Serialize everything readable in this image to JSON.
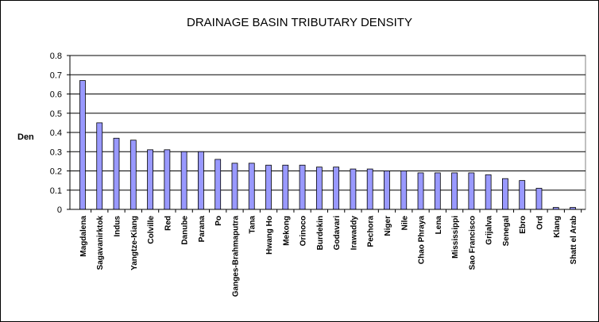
{
  "chart_data": {
    "type": "bar",
    "title": "DRAINAGE BASIN TRIBUTARY DENSITY",
    "ylabel": "Den",
    "xlabel": "",
    "ylim": [
      0,
      0.8
    ],
    "yticks": [
      "0",
      "0.1",
      "0.2",
      "0.3",
      "0.4",
      "0.5",
      "0.6",
      "0.7",
      "0.8"
    ],
    "grid": true,
    "bar_color": "#9999FF",
    "categories": [
      "Magdalena",
      "Sagavanirktok",
      "Indus",
      "Yangtze-Kiang",
      "Colville",
      "Red",
      "Danube",
      "Parana",
      "Po",
      "Ganges-Brahmaputra",
      "Tana",
      "Hwang Ho",
      "Mekong",
      "Orinoco",
      "Burdekin",
      "Godavari",
      "Irawaddy",
      "Pechora",
      "Niger",
      "Nile",
      "Chao Phraya",
      "Lena",
      "Mississippi",
      "Sao Francisco",
      "Grijalva",
      "Senegal",
      "Ebro",
      "Ord",
      "Klang",
      "Shatt el Arab"
    ],
    "values": [
      0.67,
      0.45,
      0.37,
      0.36,
      0.31,
      0.31,
      0.3,
      0.3,
      0.26,
      0.24,
      0.24,
      0.23,
      0.23,
      0.23,
      0.22,
      0.22,
      0.21,
      0.21,
      0.2,
      0.2,
      0.19,
      0.19,
      0.19,
      0.19,
      0.18,
      0.16,
      0.15,
      0.11,
      0.01,
      0.01
    ]
  }
}
